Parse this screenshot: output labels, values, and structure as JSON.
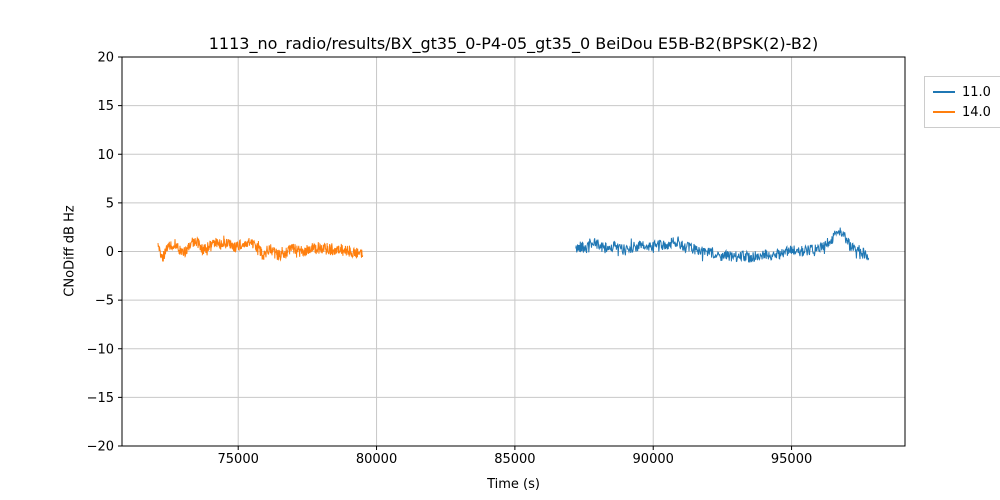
{
  "figure": {
    "title": "1113_no_radio/results/BX_gt35_0-P4-05_gt35_0 BeiDou E5B-B2(BPSK(2)-B2)",
    "xlabel": "Time (s)",
    "ylabel": "CNoDiff dB Hz"
  },
  "legend": {
    "items": [
      {
        "label": "11.0",
        "color": "#1f77b4"
      },
      {
        "label": "14.0",
        "color": "#ff7f0e"
      }
    ]
  },
  "chart_data": {
    "type": "line",
    "title": "1113_no_radio/results/BX_gt35_0-P4-05_gt35_0 BeiDou E5B-B2(BPSK(2)-B2)",
    "xlabel": "Time (s)",
    "ylabel": "CNoDiff dB Hz",
    "xlim": [
      70800,
      99100
    ],
    "ylim": [
      -20,
      20
    ],
    "x_ticks": [
      75000,
      80000,
      85000,
      90000,
      95000
    ],
    "y_ticks": [
      -20,
      -15,
      -10,
      -5,
      0,
      5,
      10,
      15,
      20
    ],
    "grid": true,
    "grid_color": "#c8c8c8",
    "frame_color": "#000000",
    "legend_position": "outside-top-right",
    "series": [
      {
        "name": "11.0",
        "color": "#1f77b4",
        "x_start": 87200,
        "x_end": 97800,
        "noise_amplitude": 0.55,
        "anchors": [
          [
            87200,
            0.2
          ],
          [
            87400,
            0.6
          ],
          [
            87600,
            0.3
          ],
          [
            87800,
            0.9
          ],
          [
            88000,
            0.7
          ],
          [
            88300,
            0.3
          ],
          [
            88600,
            0.6
          ],
          [
            88900,
            0.2
          ],
          [
            89200,
            0.4
          ],
          [
            89500,
            0.6
          ],
          [
            89800,
            0.4
          ],
          [
            90100,
            0.7
          ],
          [
            90400,
            0.6
          ],
          [
            90700,
            0.9
          ],
          [
            90900,
            1.1
          ],
          [
            91100,
            0.5
          ],
          [
            91400,
            0.3
          ],
          [
            91700,
            0.1
          ],
          [
            92000,
            -0.1
          ],
          [
            92300,
            -0.5
          ],
          [
            92600,
            -0.4
          ],
          [
            92900,
            -0.6
          ],
          [
            93200,
            -0.4
          ],
          [
            93500,
            -0.6
          ],
          [
            93800,
            -0.4
          ],
          [
            94100,
            -0.3
          ],
          [
            94400,
            -0.4
          ],
          [
            94700,
            -0.1
          ],
          [
            95000,
            0.1
          ],
          [
            95300,
            0.0
          ],
          [
            95600,
            0.1
          ],
          [
            95900,
            0.2
          ],
          [
            96200,
            0.6
          ],
          [
            96500,
            1.4
          ],
          [
            96700,
            2.3
          ],
          [
            96900,
            1.6
          ],
          [
            97100,
            0.6
          ],
          [
            97400,
            0.2
          ],
          [
            97600,
            -0.2
          ],
          [
            97800,
            -0.6
          ]
        ]
      },
      {
        "name": "14.0",
        "color": "#ff7f0e",
        "x_start": 72100,
        "x_end": 79500,
        "noise_amplitude": 0.55,
        "anchors": [
          [
            72100,
            0.9
          ],
          [
            72250,
            -0.6
          ],
          [
            72450,
            0.4
          ],
          [
            72700,
            0.9
          ],
          [
            72900,
            0.1
          ],
          [
            73100,
            0.0
          ],
          [
            73300,
            0.9
          ],
          [
            73500,
            1.1
          ],
          [
            73700,
            0.2
          ],
          [
            73900,
            0.4
          ],
          [
            74150,
            1.0
          ],
          [
            74400,
            0.6
          ],
          [
            74650,
            0.9
          ],
          [
            74900,
            0.4
          ],
          [
            75150,
            0.8
          ],
          [
            75400,
            0.9
          ],
          [
            75650,
            0.5
          ],
          [
            75900,
            -0.4
          ],
          [
            76150,
            0.3
          ],
          [
            76400,
            -0.3
          ],
          [
            76650,
            -0.4
          ],
          [
            76900,
            0.3
          ],
          [
            77150,
            0.2
          ],
          [
            77400,
            0.0
          ],
          [
            77650,
            0.4
          ],
          [
            77900,
            0.2
          ],
          [
            78150,
            0.4
          ],
          [
            78400,
            0.1
          ],
          [
            78650,
            0.3
          ],
          [
            78900,
            0.1
          ],
          [
            79150,
            -0.1
          ],
          [
            79500,
            -0.3
          ]
        ]
      }
    ]
  }
}
